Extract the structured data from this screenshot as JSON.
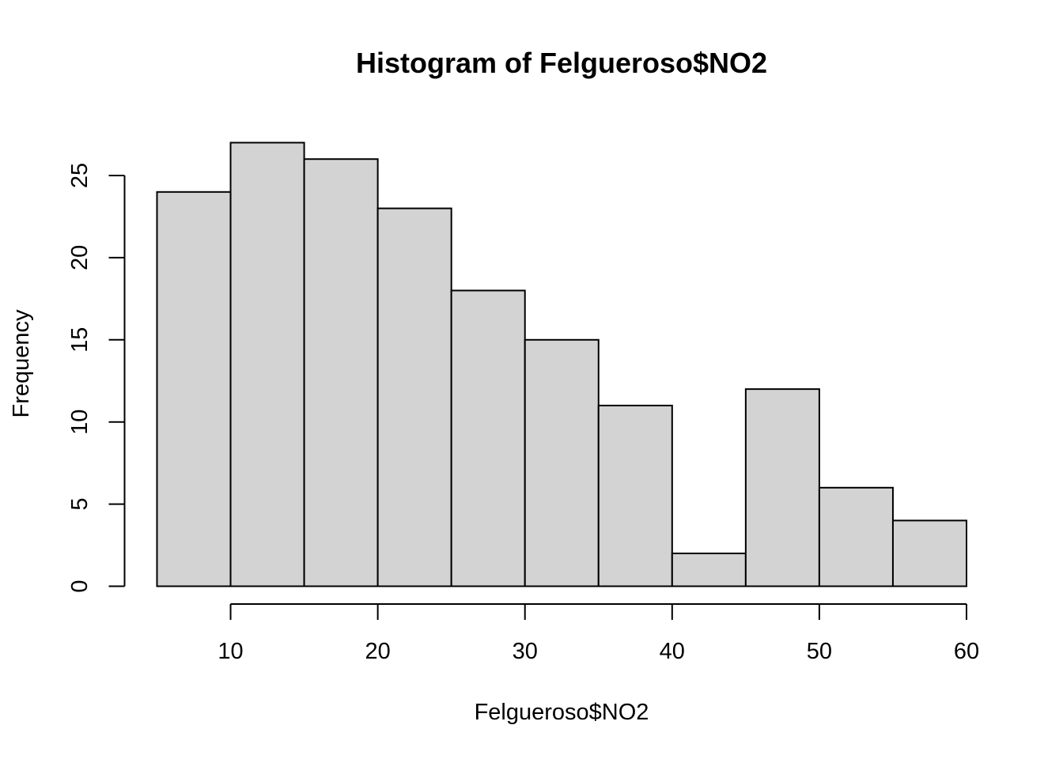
{
  "chart_data": {
    "type": "bar",
    "subtype": "histogram",
    "title": "Histogram of Felgueroso$NO2",
    "xlabel": "Felgueroso$NO2",
    "ylabel": "Frequency",
    "bins": [
      {
        "start": 5,
        "end": 10,
        "count": 24
      },
      {
        "start": 10,
        "end": 15,
        "count": 27
      },
      {
        "start": 15,
        "end": 20,
        "count": 26
      },
      {
        "start": 20,
        "end": 25,
        "count": 23
      },
      {
        "start": 25,
        "end": 30,
        "count": 18
      },
      {
        "start": 30,
        "end": 35,
        "count": 15
      },
      {
        "start": 35,
        "end": 40,
        "count": 11
      },
      {
        "start": 40,
        "end": 45,
        "count": 2
      },
      {
        "start": 45,
        "end": 50,
        "count": 12
      },
      {
        "start": 50,
        "end": 55,
        "count": 6
      },
      {
        "start": 55,
        "end": 60,
        "count": 4
      }
    ],
    "x_ticks": [
      10,
      20,
      30,
      40,
      50,
      60
    ],
    "y_ticks": [
      0,
      5,
      10,
      15,
      20,
      25
    ],
    "xlim": [
      5,
      60
    ],
    "ylim": [
      0,
      27
    ],
    "bar_color": "#d3d3d3",
    "grid": false
  }
}
